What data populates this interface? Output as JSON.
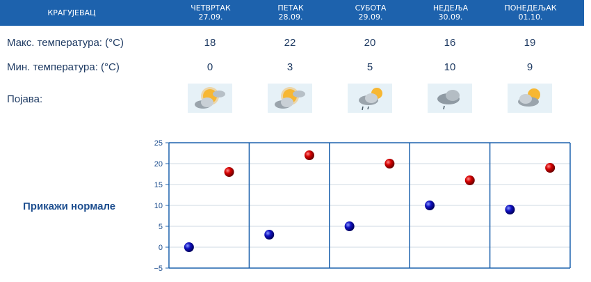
{
  "header": {
    "city": "КРАГУЈЕВАЦ",
    "days": [
      {
        "name": "ЧЕТВРТАК",
        "date": "27.09."
      },
      {
        "name": "ПЕТАК",
        "date": "28.09."
      },
      {
        "name": "СУБОТА",
        "date": "29.09."
      },
      {
        "name": "НЕДЕЉА",
        "date": "30.09."
      },
      {
        "name": "ПОНЕДЕЉАК",
        "date": "01.10."
      }
    ]
  },
  "rows": {
    "max_label": "Макс. температура: (°C)",
    "min_label": "Мин. температура: (°C)",
    "phenomenon_label": "Појава:",
    "max_values": [
      "18",
      "22",
      "20",
      "16",
      "19"
    ],
    "min_values": [
      "0",
      "3",
      "5",
      "10",
      "9"
    ],
    "icons": [
      "partly-sunny-icon",
      "partly-sunny-icon",
      "sun-cloud-drizzle-icon",
      "cloud-drizzle-icon",
      "cloud-sun-icon"
    ]
  },
  "normals_link": "Прикажи нормале",
  "colors": {
    "header_bg": "#1d62ad",
    "max_point": "#cc0000",
    "min_point": "#1010aa",
    "grid": "#1d62ad"
  },
  "chart_data": {
    "type": "scatter",
    "categories": [
      "27.09.",
      "28.09.",
      "29.09.",
      "30.09.",
      "01.10."
    ],
    "series": [
      {
        "values": [
          0,
          3,
          5,
          10,
          9
        ]
      },
      {
        "values": [
          18,
          22,
          20,
          16,
          19
        ]
      }
    ],
    "ylim": [
      -5,
      25
    ],
    "yticks": [
      "25",
      "20",
      "15",
      "10",
      "5",
      "0",
      "−5"
    ],
    "grid": true
  }
}
